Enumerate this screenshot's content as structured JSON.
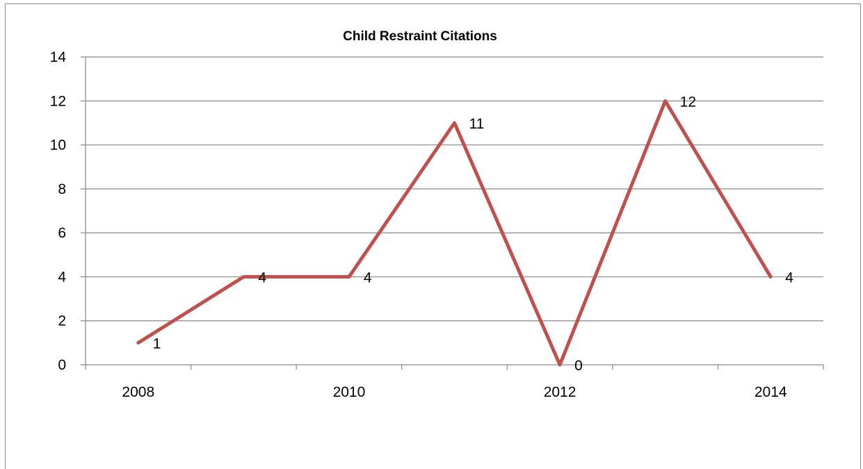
{
  "chart_data": {
    "type": "line",
    "title": "Child Restraint Citations",
    "xlabel": "",
    "ylabel": "",
    "categories": [
      "2008",
      "2009",
      "2010",
      "2011",
      "2012",
      "2013",
      "2014"
    ],
    "x_tick_labels": [
      "2008",
      "",
      "2010",
      "",
      "2012",
      "",
      "2014"
    ],
    "series": [
      {
        "values": [
          1,
          4,
          4,
          11,
          0,
          12,
          4
        ],
        "data_labels": [
          "1",
          "4",
          "4",
          "11",
          "0",
          "12",
          "4"
        ],
        "color": "#c0504d"
      }
    ],
    "ylim": [
      0,
      14
    ],
    "yticks": [
      0,
      2,
      4,
      6,
      8,
      10,
      12,
      14
    ],
    "ytick_labels": [
      "0",
      "2",
      "4",
      "6",
      "8",
      "10",
      "12",
      "14"
    ],
    "grid": true,
    "legend": "none",
    "colors": {
      "gridline": "#868686",
      "axis": "#868686",
      "series": "#c0504d"
    }
  }
}
